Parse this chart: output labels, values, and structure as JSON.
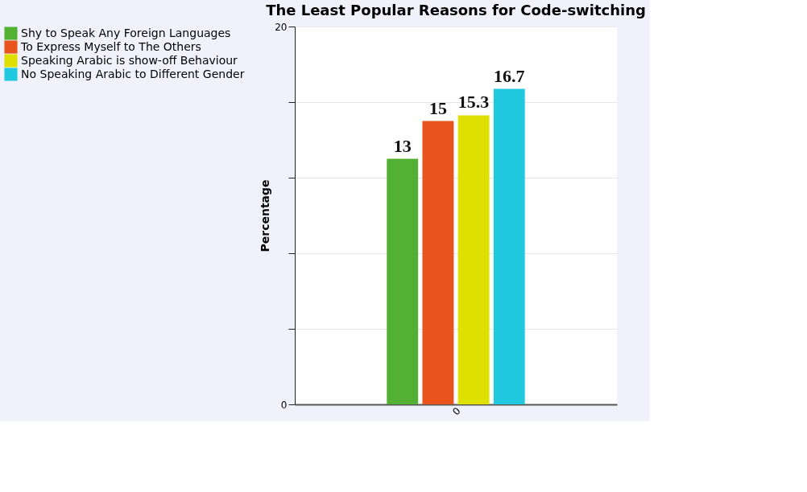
{
  "chart_data": {
    "type": "bar",
    "title": "The Least Popular Reasons for Code-switching",
    "ylabel": "Percentage",
    "categories": [
      "0"
    ],
    "series": [
      {
        "name": "Shy to Speak Any Foreign Languages",
        "color": "#52b133",
        "values": [
          13
        ]
      },
      {
        "name": "To Express Myself to The Others",
        "color": "#e8541c",
        "values": [
          15
        ]
      },
      {
        "name": "Speaking Arabic is show-off Behaviour",
        "color": "#dde000",
        "values": [
          15.3
        ]
      },
      {
        "name": "No Speaking Arabic to Different Gender",
        "color": "#22c8e0",
        "values": [
          16.7
        ]
      }
    ],
    "ylim": [
      0,
      20
    ],
    "yticks": [
      0,
      {
        "value": 4,
        "label": null
      },
      {
        "value": 8,
        "label": null
      },
      {
        "value": 12,
        "label": null
      },
      {
        "value": 16,
        "label": null
      },
      20
    ],
    "grid": "y",
    "legend": "left",
    "data_labels": true
  }
}
